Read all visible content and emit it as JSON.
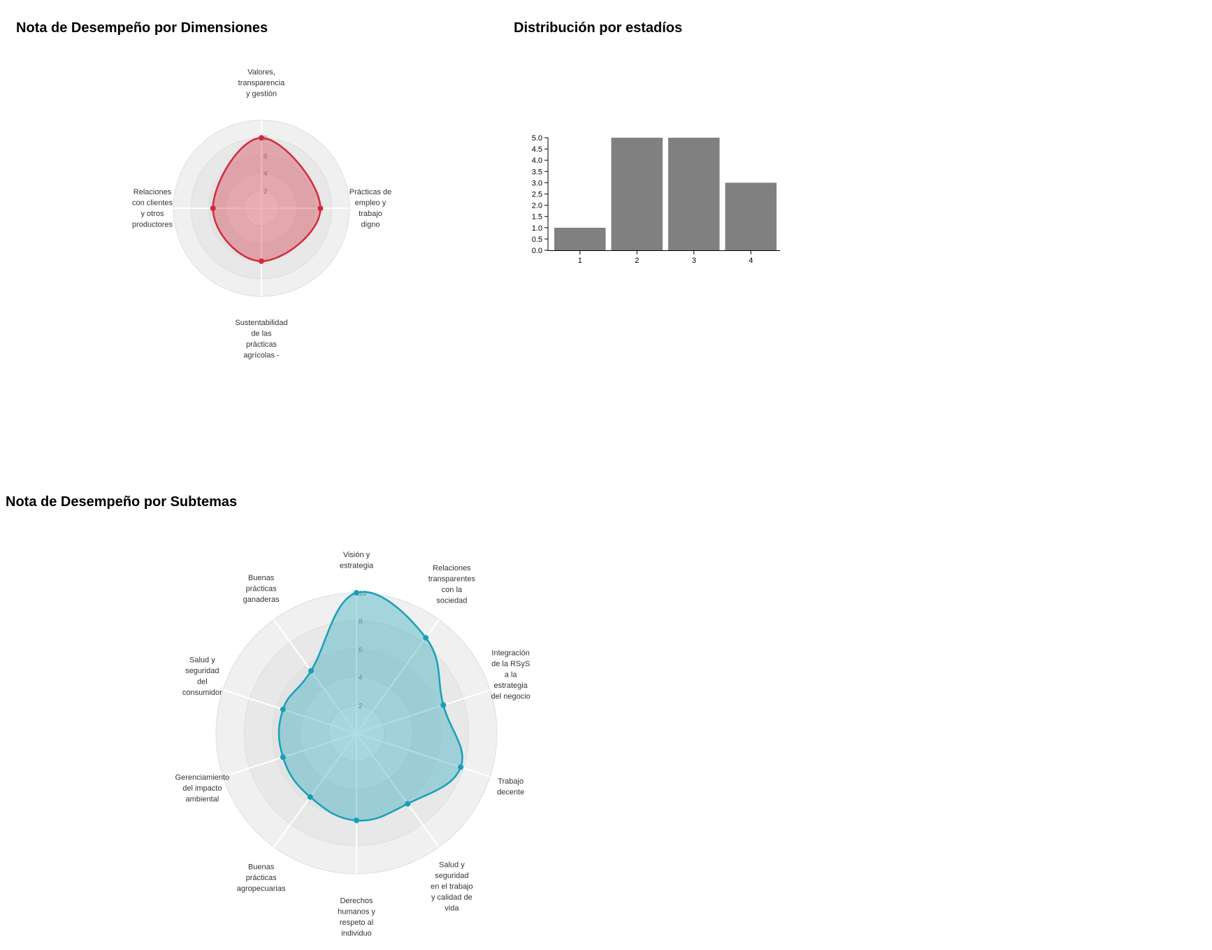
{
  "titles": {
    "dimensions": "Nota de Desempeño por Dimensiones",
    "stages": "Distribución por estadíos",
    "subtopics": "Nota de Desempeño por Subtemas"
  },
  "chart_data": [
    {
      "type": "radar",
      "title": "Nota de Desempeño por Dimensiones",
      "axes": [
        [
          "Valores,",
          "transparencia",
          "y gestión"
        ],
        [
          "Prácticas de",
          "empleo y",
          "trabajo",
          "digno"
        ],
        [
          "Sustentabilidad",
          "de las",
          "prácticas",
          "agrícolas -"
        ],
        [
          "Relaciones",
          "con clientes",
          "y otros",
          "productores"
        ]
      ],
      "values": [
        8,
        6.7,
        6,
        5.5
      ],
      "rmax": 10,
      "ticks": [
        2,
        4,
        6,
        8
      ],
      "color": "#d42a3c"
    },
    {
      "type": "bar",
      "title": "Distribución por estadíos",
      "categories": [
        "1",
        "2",
        "3",
        "4"
      ],
      "values": [
        1,
        5,
        5,
        3
      ],
      "ylim": [
        0,
        5
      ],
      "yticks": [
        "0.0",
        "0.5",
        "1.0",
        "1.5",
        "2.0",
        "2.5",
        "3.0",
        "3.5",
        "4.0",
        "4.5",
        "5.0"
      ],
      "color": "#808080"
    },
    {
      "type": "radar",
      "title": "Nota de Desempeño por Subtemas",
      "axes": [
        [
          "Visión y",
          "estrategia"
        ],
        [
          "Relaciones",
          "transparentes",
          "con la",
          "sociedad"
        ],
        [
          "Integración",
          "de la RSyS",
          "a la",
          "estrategia",
          "del negocio"
        ],
        [
          "Trabajo",
          "decente"
        ],
        [
          "Salud y",
          "seguridad",
          "en el trabajo",
          "y calidad de",
          "vida"
        ],
        [
          "Derechos",
          "humanos y",
          "respeto al",
          "individuo"
        ],
        [
          "Buenas",
          "prácticas",
          "agropecuarias"
        ],
        [
          "Gerenciamiento",
          "del impacto",
          "ambiental"
        ],
        [
          "Salud y",
          "seguridad",
          "del",
          "consumidor"
        ],
        [
          "Buenas",
          "prácticas",
          "ganaderas"
        ]
      ],
      "values": [
        10,
        8.4,
        6.5,
        7.8,
        6.2,
        6.2,
        5.6,
        5.5,
        5.5,
        5.5
      ],
      "rmax": 10,
      "ticks": [
        2,
        4,
        6,
        8,
        10
      ],
      "color": "#16a0b8"
    }
  ]
}
